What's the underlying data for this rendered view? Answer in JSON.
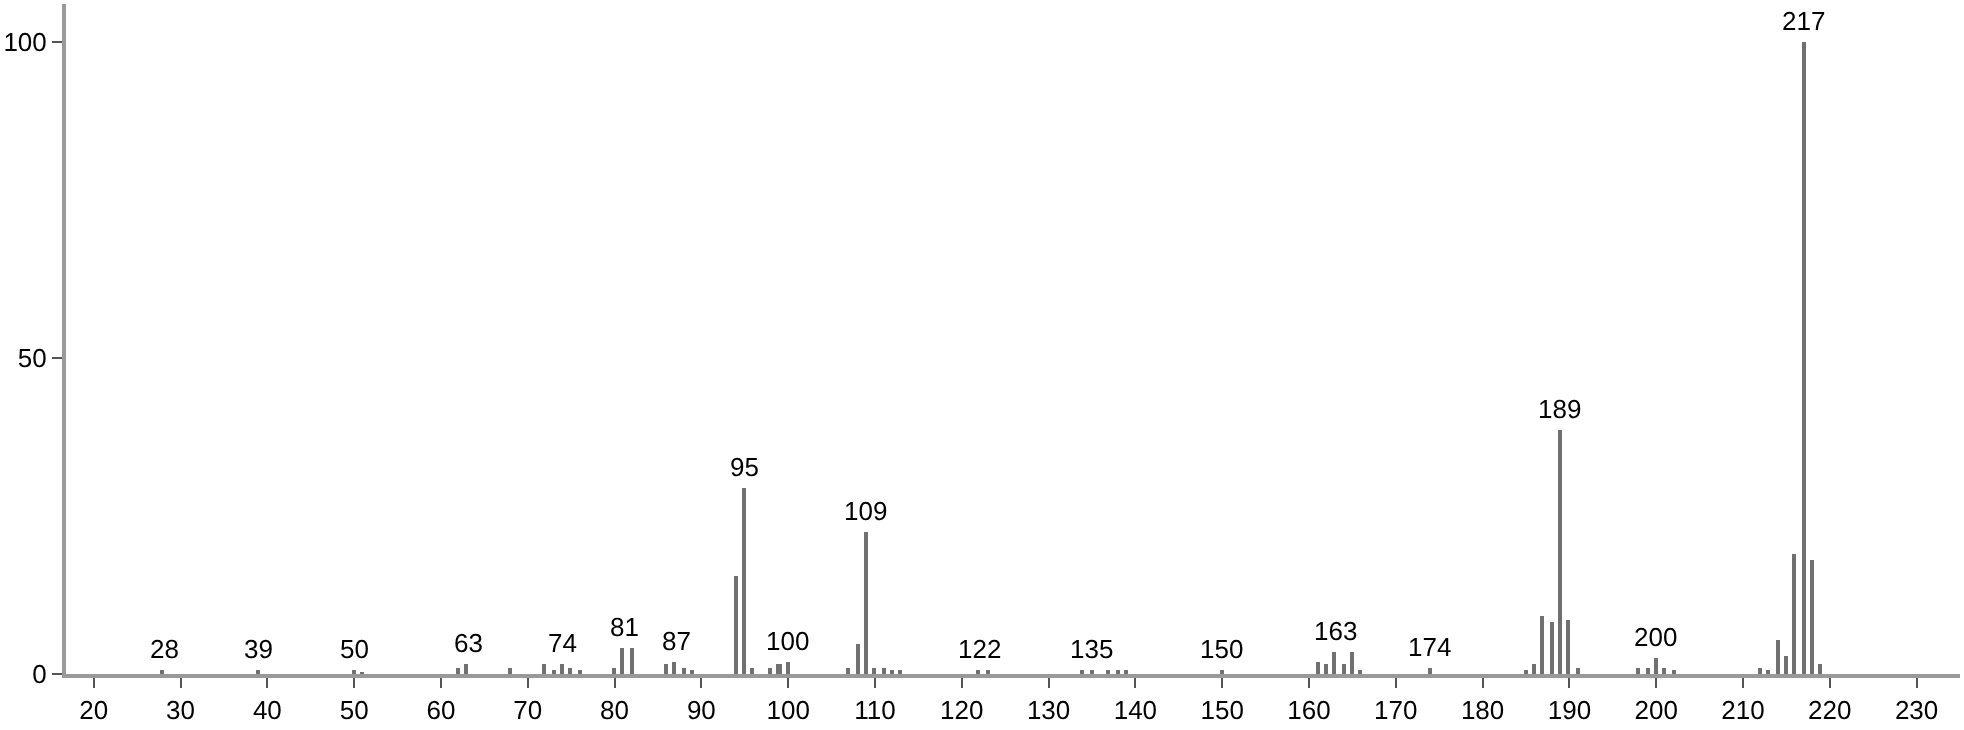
{
  "chart_data": {
    "type": "bar",
    "x": [
      28,
      39,
      50,
      51,
      62,
      63,
      68,
      72,
      73,
      74,
      75,
      76,
      80,
      81,
      82,
      86,
      87,
      88,
      89,
      94,
      95,
      96,
      98,
      99,
      100,
      107,
      108,
      109,
      110,
      111,
      112,
      113,
      122,
      123,
      134,
      135,
      137,
      138,
      139,
      150,
      161,
      162,
      163,
      164,
      165,
      166,
      174,
      185,
      186,
      187,
      188,
      189,
      190,
      191,
      198,
      199,
      200,
      201,
      202,
      212,
      213,
      214,
      215,
      216,
      217,
      218,
      219
    ],
    "values": [
      0.7,
      0.5,
      0.5,
      0.3,
      1,
      1.5,
      0.8,
      1.5,
      0.5,
      1.5,
      1,
      0.5,
      1,
      4,
      4,
      1.5,
      2,
      1,
      0.5,
      15.5,
      29.3,
      1,
      1,
      1.5,
      1.8,
      1,
      4.6,
      22.5,
      1,
      1,
      0.7,
      0.5,
      0.5,
      0.5,
      0.4,
      0.7,
      0.5,
      0.7,
      0.5,
      0.5,
      1.8,
      1.5,
      3.5,
      1.5,
      3.5,
      0.7,
      0.8,
      0.7,
      1.5,
      9.3,
      8.3,
      38.6,
      8.6,
      1,
      1,
      1,
      2.5,
      1,
      0.7,
      1,
      0.7,
      5.5,
      3,
      19,
      100,
      18,
      1.5
    ],
    "annotations": [
      {
        "text": "28",
        "x": 28,
        "y": 0.7
      },
      {
        "text": "39",
        "x": 39,
        "y": 0.5
      },
      {
        "text": "50",
        "x": 50,
        "y": 0.5
      },
      {
        "text": "63",
        "x": 63,
        "y": 1.5
      },
      {
        "text": "74",
        "x": 74,
        "y": 1.5
      },
      {
        "text": "81",
        "x": 81,
        "y": 4
      },
      {
        "text": "87",
        "x": 87,
        "y": 2
      },
      {
        "text": "95",
        "x": 95,
        "y": 29.3
      },
      {
        "text": "100",
        "x": 100,
        "y": 1.8
      },
      {
        "text": "109",
        "x": 109,
        "y": 22.5
      },
      {
        "text": "122",
        "x": 122,
        "y": 0.5
      },
      {
        "text": "135",
        "x": 135,
        "y": 0.7
      },
      {
        "text": "150",
        "x": 150,
        "y": 0.5
      },
      {
        "text": "163",
        "x": 163,
        "y": 3.5
      },
      {
        "text": "174",
        "x": 174,
        "y": 0.8
      },
      {
        "text": "189",
        "x": 189,
        "y": 38.6
      },
      {
        "text": "200",
        "x": 200,
        "y": 2.5
      },
      {
        "text": "217",
        "x": 217,
        "y": 100
      }
    ],
    "color": "#707070",
    "xlim": [
      16.8,
      235
    ],
    "xticks": [
      20,
      30,
      40,
      50,
      60,
      70,
      80,
      90,
      100,
      110,
      120,
      130,
      140,
      150,
      160,
      170,
      180,
      190,
      200,
      210,
      220,
      230
    ],
    "ylim": [
      0,
      106
    ],
    "yticks": [
      0,
      50,
      100
    ]
  }
}
